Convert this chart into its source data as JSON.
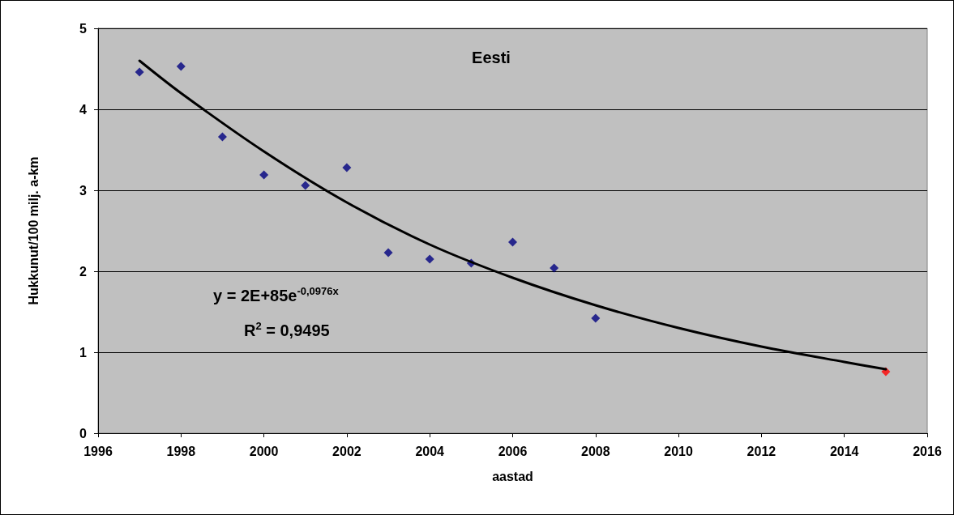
{
  "chart_data": {
    "type": "scatter",
    "title": "Eesti",
    "xlabel": "aastad",
    "ylabel": "Hukkunut/100 milj. a-km",
    "marker": "diamond",
    "grid": "y",
    "xlim": [
      1996,
      2016
    ],
    "xticks": [
      1996,
      1998,
      2000,
      2002,
      2004,
      2006,
      2008,
      2010,
      2012,
      2014,
      2016
    ],
    "ylim": [
      0,
      5
    ],
    "yticks": [
      0,
      1,
      2,
      3,
      4,
      5
    ],
    "series": [
      {
        "color": "#000080",
        "x": [
          1997,
          1998,
          1999,
          2000,
          2001,
          2002,
          2003,
          2004,
          2005,
          2006,
          2007,
          2008
        ],
        "values": [
          4.46,
          4.53,
          3.66,
          3.19,
          3.06,
          3.28,
          2.23,
          2.15,
          2.1,
          2.36,
          2.04,
          1.42
        ]
      },
      {
        "color": "#ff0000",
        "x": [
          2015
        ],
        "values": [
          0.76
        ]
      },
      {
        "type": "line",
        "marker": "none",
        "color": "#000000",
        "x": [
          1997,
          1998,
          2000,
          2002,
          2004,
          2006,
          2008,
          2010,
          2012,
          2014,
          2015
        ],
        "values": [
          4.6,
          4.2,
          3.48,
          2.85,
          2.33,
          1.92,
          1.58,
          1.3,
          1.07,
          0.88,
          0.79
        ]
      }
    ],
    "annotations": [
      "y = 2E+85e$^{-0,0976x}$",
      "R$^{2}$ = 0,9495"
    ]
  }
}
